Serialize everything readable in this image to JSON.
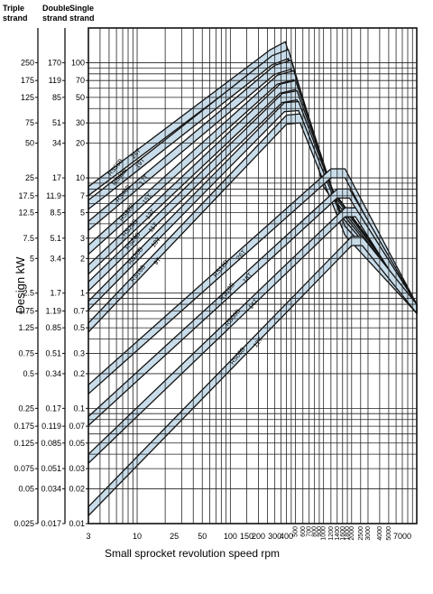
{
  "chart_data": {
    "type": "line",
    "title": "",
    "xlabel": "Small sprocket revolution speed rpm",
    "ylabel": "Design kW",
    "x_scale": "log",
    "y_scale": "log",
    "xlim": [
      3,
      10000
    ],
    "ylim": [
      0.01,
      200
    ],
    "grid": true,
    "column_headers": [
      {
        "line1": "Triple",
        "line2": "strand"
      },
      {
        "line1": "Double",
        "line2": "strand"
      },
      {
        "line1": "Single",
        "line2": "strand"
      }
    ],
    "y_ticks": {
      "single": [
        "100",
        "70",
        "50",
        "30",
        "20",
        "10",
        "7",
        "5",
        "3",
        "2",
        "1",
        "0.7",
        "0.5",
        "0.3",
        "0.2",
        "0.1",
        "0.07",
        "0.05",
        "0.03",
        "0.02",
        "0.01"
      ],
      "double": [
        "170",
        "119",
        "85",
        "51",
        "34",
        "17",
        "11.9",
        "8.5",
        "5.1",
        "3.4",
        "1.7",
        "1.19",
        "0.85",
        "0.51",
        "0.34",
        "0.17",
        "0.119",
        "0.085",
        "0.051",
        "0.034",
        "0.017"
      ],
      "triple": [
        "250",
        "175",
        "125",
        "75",
        "50",
        "25",
        "17.5",
        "12.5",
        "7.5",
        "5",
        "2.5",
        "1.75",
        "1.25",
        "0.75",
        "0.5",
        "0.25",
        "0.175",
        "0.125",
        "0.075",
        "0.05",
        "0.025"
      ]
    },
    "x_ticks_major": [
      "3",
      "10",
      "25",
      "50",
      "100",
      "150",
      "200",
      "300",
      "400",
      "7000"
    ],
    "x_ticks_minor": [
      "500",
      "600",
      "700",
      "800",
      "900",
      "1000",
      "1200",
      "1400",
      "1600",
      "1800",
      "2000",
      "2500",
      "3000",
      "4000",
      "5000"
    ],
    "series": [
      {
        "name": "RS56B",
        "teeth": "26T",
        "x": [
          3,
          270,
          390,
          1000,
          10000
        ],
        "y": [
          8.4,
          130,
          152,
          10,
          0.8
        ]
      },
      {
        "name": "RS48B",
        "teeth": "19T",
        "x": [
          3,
          280,
          420,
          1100,
          10000
        ],
        "y": [
          6.4,
          115,
          130,
          9,
          0.8
        ]
      },
      {
        "name": "RS40B",
        "teeth": "17T",
        "x": [
          3,
          300,
          450,
          1200,
          10000
        ],
        "y": [
          4.2,
          95,
          105,
          8,
          0.8
        ]
      },
      {
        "name": "RS32B",
        "teeth": "15T",
        "x": [
          3,
          320,
          480,
          1300,
          10000
        ],
        "y": [
          2.6,
          78,
          85,
          7,
          0.8
        ]
      },
      {
        "name": "RS28B",
        "teeth": "13T",
        "x": [
          3,
          340,
          500,
          1400,
          10000
        ],
        "y": [
          1.75,
          65,
          70,
          6,
          0.8
        ]
      },
      {
        "name": "RS24B",
        "teeth": "11T",
        "x": [
          3,
          360,
          520,
          1500,
          10000
        ],
        "y": [
          1.25,
          54,
          57,
          5.2,
          0.8
        ]
      },
      {
        "name": "RS20B",
        "teeth": "10T",
        "x": [
          3,
          380,
          540,
          1600,
          10000
        ],
        "y": [
          0.85,
          45,
          46,
          4.5,
          0.8
        ]
      },
      {
        "name": "RS16B",
        "teeth": "9T",
        "x": [
          3,
          400,
          560,
          1700,
          10000
        ],
        "y": [
          0.55,
          35,
          36,
          3.8,
          0.8
        ]
      },
      {
        "name": "RS12B",
        "teeth": "26T",
        "x": [
          3,
          1200,
          1700,
          10000
        ],
        "y": [
          0.16,
          12,
          12,
          0.8
        ]
      },
      {
        "name": "RS10B",
        "teeth": "18T",
        "x": [
          3,
          1400,
          1900,
          10000
        ],
        "y": [
          0.085,
          8,
          8,
          0.8
        ]
      },
      {
        "name": "RS08B",
        "teeth": "14T",
        "x": [
          3,
          1700,
          2200,
          10000
        ],
        "y": [
          0.04,
          5.5,
          5.5,
          0.8
        ]
      },
      {
        "name": "RS06B",
        "teeth": "12T",
        "x": [
          3,
          2000,
          2600,
          10000
        ],
        "y": [
          0.014,
          3.1,
          3.1,
          0.8
        ]
      }
    ]
  }
}
